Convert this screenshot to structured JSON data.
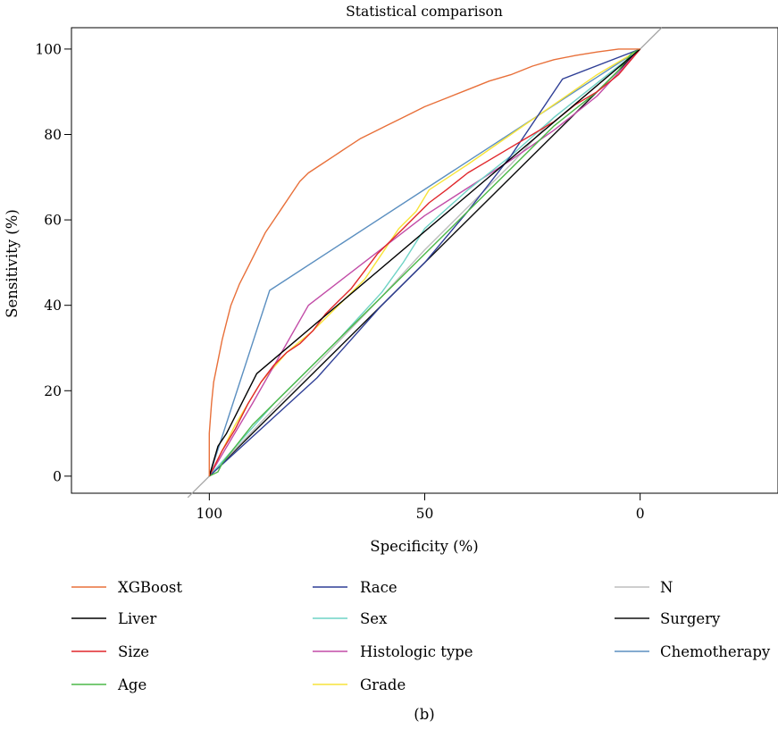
{
  "chart_data": {
    "type": "line",
    "title": "Statistical comparison",
    "xlabel": "Specificity (%)",
    "ylabel": "Sensitivity (%)",
    "caption": "(b)",
    "x_reversed": true,
    "xlim": [
      132,
      -32
    ],
    "ylim": [
      -4,
      105
    ],
    "xticks": [
      100,
      50,
      0
    ],
    "yticks": [
      0,
      20,
      40,
      60,
      80,
      100
    ],
    "reference_line": {
      "from": [
        105,
        -5
      ],
      "to": [
        -5,
        105
      ],
      "color": "#a6a6a6"
    },
    "legend_position": "bottom",
    "series": [
      {
        "name": "XGBoost",
        "color": "#e8703a",
        "points": [
          [
            100,
            0
          ],
          [
            100,
            10
          ],
          [
            99.5,
            17
          ],
          [
            99,
            22
          ],
          [
            98,
            27
          ],
          [
            97,
            32
          ],
          [
            96,
            36
          ],
          [
            95,
            40
          ],
          [
            93,
            45
          ],
          [
            91,
            49
          ],
          [
            89,
            53
          ],
          [
            87,
            57
          ],
          [
            85,
            60
          ],
          [
            83,
            63
          ],
          [
            81,
            66
          ],
          [
            79,
            69
          ],
          [
            77,
            71
          ],
          [
            74,
            73
          ],
          [
            71,
            75
          ],
          [
            68,
            77
          ],
          [
            65,
            79
          ],
          [
            62,
            80.5
          ],
          [
            59,
            82
          ],
          [
            56,
            83.5
          ],
          [
            53,
            85
          ],
          [
            50,
            86.5
          ],
          [
            45,
            88.5
          ],
          [
            40,
            90.5
          ],
          [
            35,
            92.5
          ],
          [
            30,
            94
          ],
          [
            25,
            96
          ],
          [
            20,
            97.5
          ],
          [
            15,
            98.5
          ],
          [
            10,
            99.3
          ],
          [
            5,
            100
          ],
          [
            0,
            100
          ]
        ]
      },
      {
        "name": "Liver",
        "color": "#000000",
        "points": [
          [
            100,
            0
          ],
          [
            98,
            7
          ],
          [
            96,
            10
          ],
          [
            89,
            24
          ],
          [
            0,
            100
          ]
        ]
      },
      {
        "name": "Size",
        "color": "#e0262b",
        "points": [
          [
            100,
            0
          ],
          [
            97,
            6
          ],
          [
            94,
            11
          ],
          [
            91,
            17
          ],
          [
            88,
            22
          ],
          [
            85,
            26
          ],
          [
            82,
            29
          ],
          [
            79,
            31
          ],
          [
            76,
            34
          ],
          [
            73,
            38
          ],
          [
            70,
            41
          ],
          [
            67,
            44
          ],
          [
            64,
            48
          ],
          [
            61,
            52
          ],
          [
            58,
            55
          ],
          [
            55,
            58
          ],
          [
            52,
            61
          ],
          [
            49,
            64
          ],
          [
            45,
            67
          ],
          [
            40,
            71
          ],
          [
            35,
            74
          ],
          [
            30,
            77
          ],
          [
            25,
            80
          ],
          [
            20,
            83
          ],
          [
            15,
            87
          ],
          [
            10,
            90
          ],
          [
            5,
            94
          ],
          [
            0,
            100
          ]
        ]
      },
      {
        "name": "Age",
        "color": "#4cb848",
        "points": [
          [
            100,
            0
          ],
          [
            98,
            1
          ],
          [
            97,
            3
          ],
          [
            90,
            12
          ],
          [
            80,
            22
          ],
          [
            70,
            32
          ],
          [
            60,
            42
          ],
          [
            50,
            52
          ],
          [
            40,
            62
          ],
          [
            30,
            72
          ],
          [
            20,
            82
          ],
          [
            10,
            90
          ],
          [
            5,
            95
          ],
          [
            2,
            99
          ],
          [
            0,
            100
          ]
        ]
      },
      {
        "name": "Race",
        "color": "#2f3f96",
        "points": [
          [
            100,
            0
          ],
          [
            75,
            23
          ],
          [
            60,
            40
          ],
          [
            50,
            50
          ],
          [
            40,
            62
          ],
          [
            30,
            75
          ],
          [
            18,
            93
          ],
          [
            0,
            100
          ]
        ]
      },
      {
        "name": "Sex",
        "color": "#6fd3c6",
        "points": [
          [
            100,
            0
          ],
          [
            85,
            17
          ],
          [
            70,
            32
          ],
          [
            60,
            43
          ],
          [
            55,
            50
          ],
          [
            50,
            58
          ],
          [
            40,
            67
          ],
          [
            30,
            75
          ],
          [
            20,
            84
          ],
          [
            10,
            92
          ],
          [
            0,
            100
          ]
        ]
      },
      {
        "name": "Histologic type",
        "color": "#c24ca7",
        "points": [
          [
            100,
            0
          ],
          [
            90,
            17
          ],
          [
            77,
            40
          ],
          [
            50,
            61
          ],
          [
            30,
            74
          ],
          [
            20,
            81
          ],
          [
            10,
            89
          ],
          [
            0,
            100
          ]
        ]
      },
      {
        "name": "Grade",
        "color": "#f7e43a",
        "points": [
          [
            100,
            0
          ],
          [
            94,
            12
          ],
          [
            88,
            22
          ],
          [
            82,
            29
          ],
          [
            76,
            34
          ],
          [
            70,
            40
          ],
          [
            64,
            46
          ],
          [
            60,
            52
          ],
          [
            56,
            58
          ],
          [
            52,
            62
          ],
          [
            49,
            67
          ],
          [
            40,
            73
          ],
          [
            30,
            80
          ],
          [
            20,
            87
          ],
          [
            10,
            94
          ],
          [
            0,
            100
          ]
        ]
      },
      {
        "name": "N",
        "color": "#bdbdbd",
        "points": [
          [
            100,
            0
          ],
          [
            80,
            21
          ],
          [
            60,
            42
          ],
          [
            50,
            53
          ],
          [
            40,
            63
          ],
          [
            30,
            73
          ],
          [
            20,
            84
          ],
          [
            10,
            92
          ],
          [
            0,
            100
          ]
        ]
      },
      {
        "name": "Surgery",
        "color": "#111111",
        "points": [
          [
            100,
            0
          ],
          [
            80,
            20
          ],
          [
            60,
            40
          ],
          [
            50,
            50
          ],
          [
            40,
            60
          ],
          [
            20,
            80
          ],
          [
            0,
            100
          ]
        ]
      },
      {
        "name": "Chemotherapy",
        "color": "#5b8fc0",
        "points": [
          [
            100,
            0
          ],
          [
            86,
            43.5
          ],
          [
            0,
            100
          ]
        ]
      }
    ]
  }
}
